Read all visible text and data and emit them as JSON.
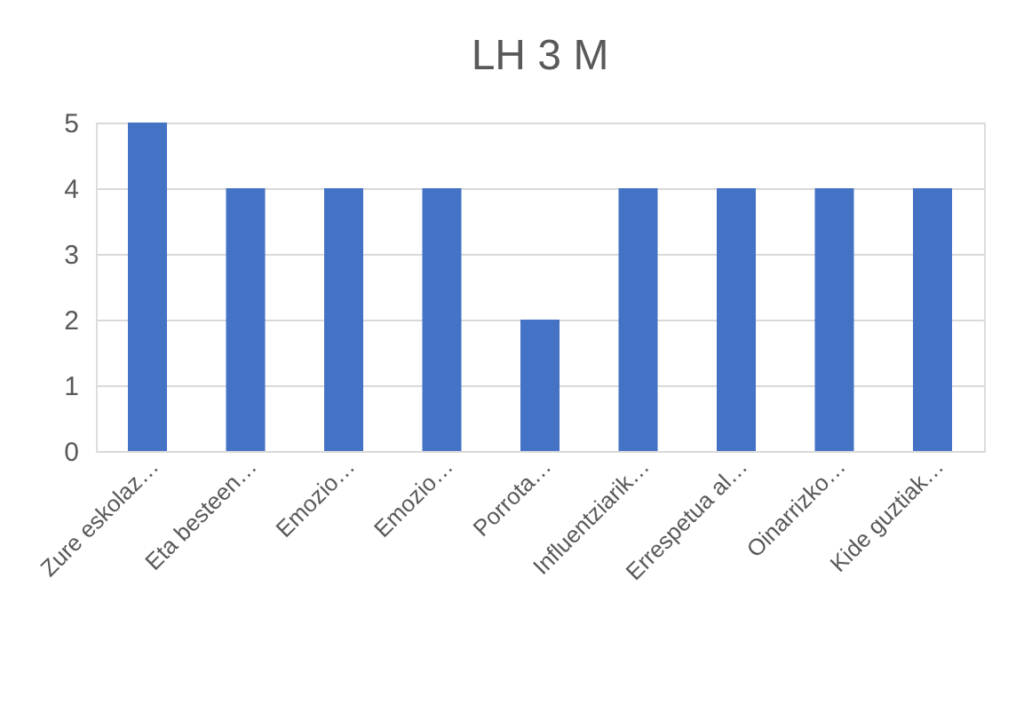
{
  "chart_data": {
    "type": "bar",
    "title": "LH 3 M",
    "categories": [
      "Zure eskolaz…",
      "Eta besteen…",
      "Emozio…",
      "Emozio…",
      "Porrota…",
      "Influentziarik…",
      "Errespetua al…",
      "Oinarrizko…",
      "Kide guztiak…"
    ],
    "values": [
      5,
      4,
      4,
      4,
      2,
      4,
      4,
      4,
      4
    ],
    "color": "#4472c4",
    "ylim": [
      0,
      5
    ],
    "yticks": [
      0,
      1,
      2,
      3,
      4,
      5
    ],
    "grid": "y"
  }
}
